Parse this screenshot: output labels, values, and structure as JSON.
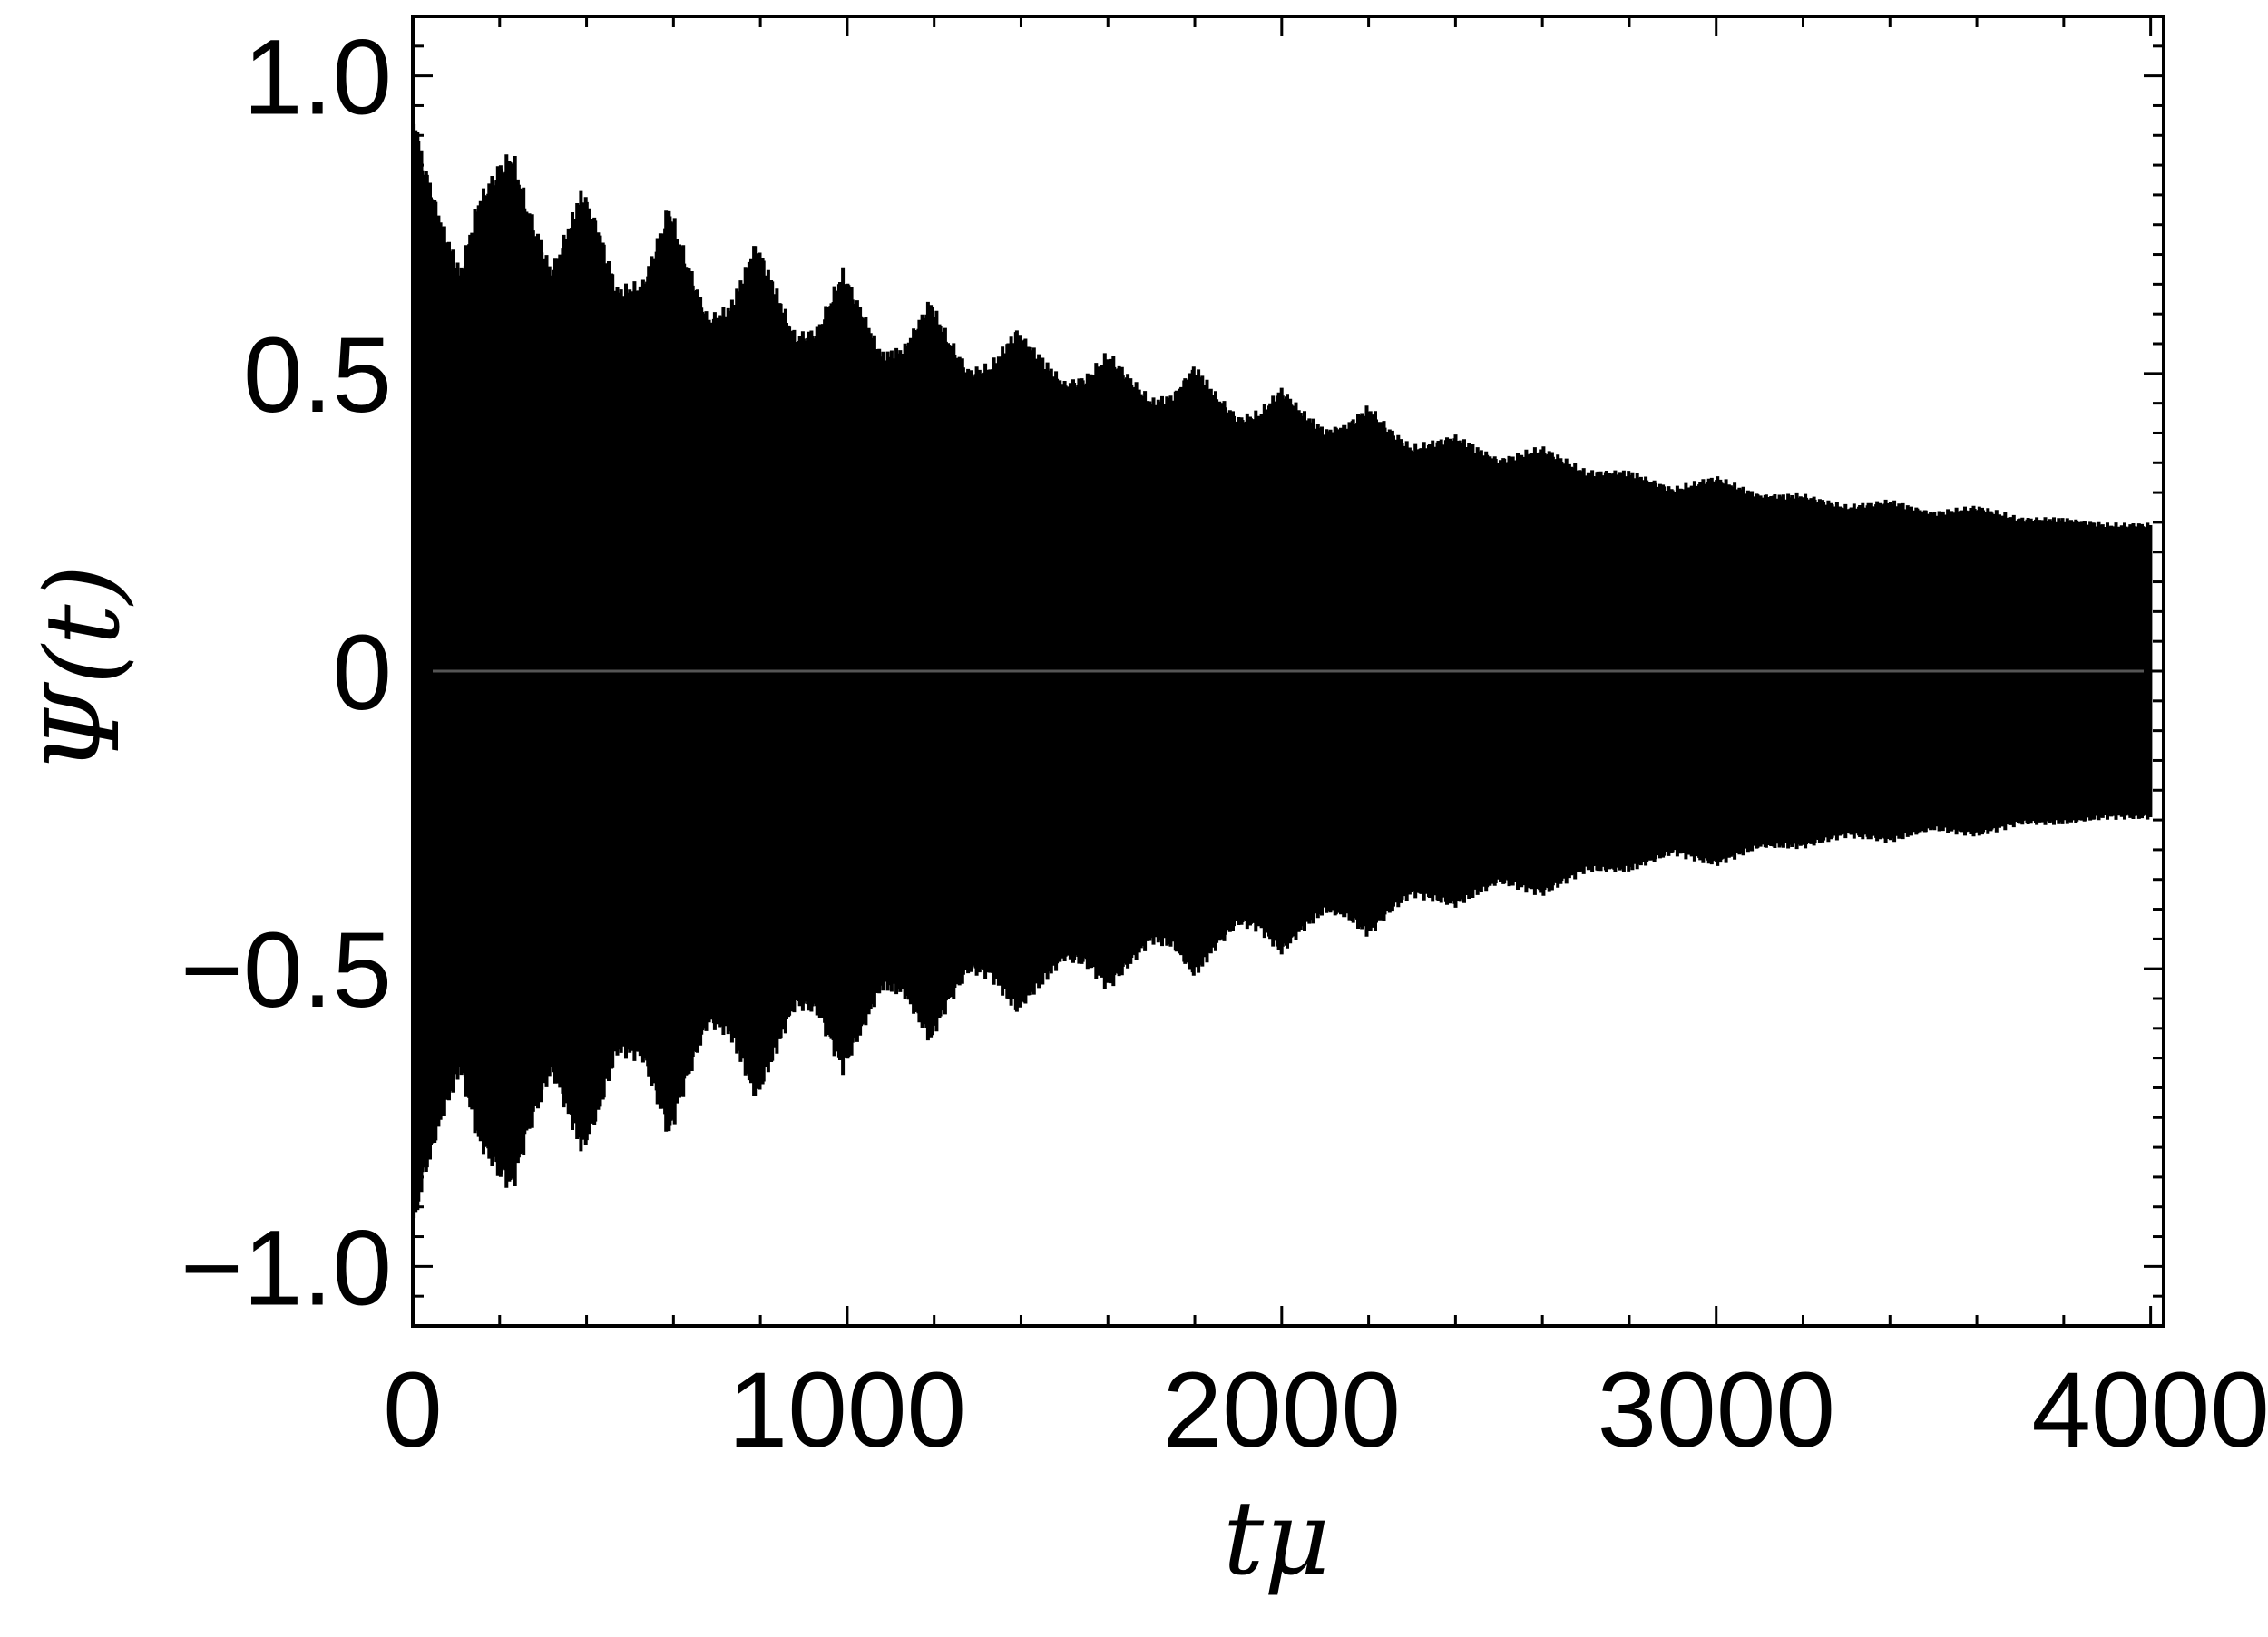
{
  "chart_data": {
    "type": "line",
    "title": "",
    "xlabel": "tμ",
    "ylabel": "Ψ(t)",
    "xlim": [
      0,
      4030
    ],
    "ylim": [
      -1.1,
      1.1
    ],
    "x_ticks": [
      0,
      1000,
      2000,
      3000,
      4000
    ],
    "x_tick_labels": [
      "0",
      "1000",
      "2000",
      "3000",
      "4000"
    ],
    "y_ticks": [
      -1.0,
      -0.5,
      0,
      0.5,
      1.0
    ],
    "y_tick_labels": [
      "−1.0",
      "−0.5",
      "0",
      "0.5",
      "1.0"
    ],
    "grid": false,
    "legend": "none",
    "series_color": "#000000",
    "zero_line_color": "#555555",
    "envelope": {
      "description": "rapidly oscillating signal; upper (and mirrored lower) envelope of |Ψ(t)|",
      "x": [
        0,
        20,
        60,
        110,
        150,
        200,
        230,
        260,
        320,
        390,
        430,
        470,
        530,
        590,
        630,
        680,
        730,
        790,
        830,
        880,
        930,
        990,
        1030,
        1080,
        1130,
        1190,
        1230,
        1280,
        1330,
        1390,
        1440,
        1500,
        1550,
        1600,
        1650,
        1700,
        1750,
        1800,
        1850,
        1900,
        1950,
        2000,
        2050,
        2100,
        2150,
        2200,
        2250,
        2300,
        2400,
        2500,
        2600,
        2700,
        2800,
        2900,
        3000,
        3100,
        3200,
        3300,
        3400,
        3500,
        3600,
        3700,
        3800,
        3900,
        4000
      ],
      "y": [
        0.97,
        0.88,
        0.78,
        0.68,
        0.8,
        0.86,
        0.88,
        0.8,
        0.68,
        0.82,
        0.75,
        0.65,
        0.66,
        0.79,
        0.7,
        0.6,
        0.62,
        0.73,
        0.66,
        0.57,
        0.58,
        0.68,
        0.62,
        0.54,
        0.55,
        0.63,
        0.57,
        0.51,
        0.52,
        0.58,
        0.54,
        0.49,
        0.5,
        0.54,
        0.5,
        0.46,
        0.47,
        0.52,
        0.47,
        0.43,
        0.44,
        0.48,
        0.44,
        0.41,
        0.42,
        0.45,
        0.41,
        0.38,
        0.4,
        0.36,
        0.38,
        0.34,
        0.34,
        0.31,
        0.33,
        0.3,
        0.3,
        0.28,
        0.29,
        0.27,
        0.28,
        0.26,
        0.26,
        0.25,
        0.25
      ]
    }
  }
}
